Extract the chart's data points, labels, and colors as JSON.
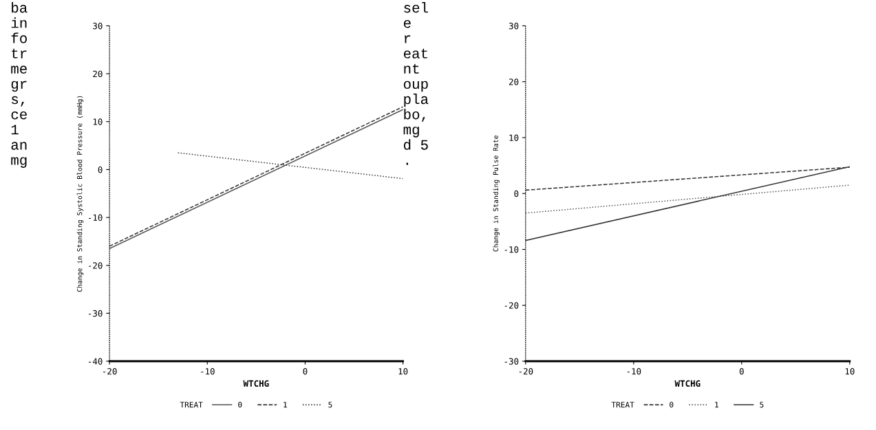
{
  "chart_data": [
    {
      "type": "line",
      "xlabel": "WTCHG",
      "ylabel": "Change in Standing Systolic Blood Pressure (mmHg)",
      "legend_title": "TREAT",
      "legend": "bottom",
      "annotations": [
        "ba\nin\nfo\ntr\nme\ngr\ns,\nce\n1\nan\nmg"
      ],
      "xlim": [
        -20,
        10
      ],
      "xticks": [
        -20,
        -10,
        0,
        10
      ],
      "ylim": [
        -40,
        30
      ],
      "yticks": [
        -40,
        -30,
        -20,
        -10,
        0,
        10,
        20,
        30
      ],
      "grid": false,
      "series": [
        {
          "name": "0",
          "color": "#555555",
          "line_style": "solid",
          "x": [
            -20,
            10
          ],
          "values": [
            -16.5,
            12.5
          ]
        },
        {
          "name": "1",
          "color": "#333333",
          "line_style": "dashed",
          "x": [
            -20,
            10
          ],
          "values": [
            -16,
            13.1
          ]
        },
        {
          "name": "5",
          "color": "#333333",
          "line_style": "dotted",
          "x": [
            -13,
            10
          ],
          "values": [
            3.5,
            -1.9
          ]
        }
      ]
    },
    {
      "type": "line",
      "xlabel": "WTCHG",
      "ylabel": "Change in Standing Pulse Rate",
      "legend_title": "TREAT",
      "legend": "bottom",
      "annotations": [
        "sel\ne\nr\neat\nnt\noup\npla\nbo,\nmg\nd 5\n."
      ],
      "xlim": [
        -20,
        10
      ],
      "xticks": [
        -20,
        -10,
        0,
        10
      ],
      "ylim": [
        -30,
        30
      ],
      "yticks": [
        -30,
        -20,
        -10,
        0,
        10,
        20,
        30
      ],
      "grid": false,
      "series": [
        {
          "name": "0",
          "color": "#333333",
          "line_style": "dashed",
          "x": [
            -20,
            10
          ],
          "values": [
            0.6,
            4.7
          ]
        },
        {
          "name": "1",
          "color": "#555555",
          "line_style": "dotted",
          "x": [
            -20,
            10
          ],
          "values": [
            -3.5,
            1.5
          ]
        },
        {
          "name": "5",
          "color": "#333333",
          "line_style": "solid",
          "x": [
            -20,
            10
          ],
          "values": [
            -8.4,
            4.8
          ]
        }
      ]
    }
  ]
}
